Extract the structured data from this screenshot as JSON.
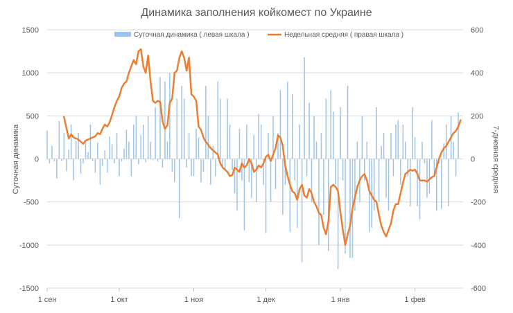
{
  "chart_data": {
    "type": "bar+line",
    "title": "Динамика заполнения койкомест по Украине",
    "ylabel_left": "Суточная динамика",
    "ylabel_right": "7-дневная средняя",
    "ylim_left": [
      -1500,
      1500
    ],
    "ylim_right": [
      -600,
      600
    ],
    "yticks_left": [
      "1500",
      "1000",
      "500",
      "0",
      "-500",
      "-1000",
      "-1500"
    ],
    "yticks_right": [
      "600",
      "400",
      "200",
      "0",
      "-200",
      "-400",
      "-600"
    ],
    "x_start": "2020-09-01",
    "x_end": "2021-02-21",
    "xticks": [
      {
        "label": "1 сен",
        "date": "2020-09-01"
      },
      {
        "label": "1 окт",
        "date": "2020-10-01"
      },
      {
        "label": "1 ноя",
        "date": "2020-11-01"
      },
      {
        "label": "1 дек",
        "date": "2020-12-01"
      },
      {
        "label": "1 янв",
        "date": "2021-01-01"
      },
      {
        "label": "1 фев",
        "date": "2021-02-01"
      }
    ],
    "legend_position": "top",
    "grid": true,
    "series": [
      {
        "name": "Суточная динамика ( левая шкала )",
        "type": "bar",
        "axis": "left",
        "color": "#9dc3e6",
        "values": [
          330,
          -50,
          150,
          -30,
          -230,
          440,
          -20,
          300,
          -140,
          110,
          400,
          -250,
          210,
          300,
          -170,
          -50,
          200,
          80,
          400,
          -20,
          -160,
          190,
          -300,
          -80,
          100,
          -160,
          260,
          170,
          -50,
          300,
          -200,
          -30,
          120,
          340,
          200,
          -200,
          400,
          500,
          -60,
          280,
          400,
          -40,
          500,
          200,
          -10,
          600,
          -30,
          950,
          -100,
          900,
          200,
          1000,
          -150,
          -270,
          700,
          -690,
          850,
          700,
          -100,
          300,
          -200,
          -200,
          350,
          250,
          -270,
          -150,
          850,
          500,
          -300,
          150,
          -200,
          900,
          700,
          -100,
          -120,
          700,
          400,
          -130,
          -400,
          -600,
          350,
          -250,
          -830,
          400,
          -270,
          -450,
          280,
          -500,
          520,
          400,
          -300,
          -860,
          300,
          -500,
          500,
          -350,
          300,
          800,
          -650,
          -300,
          900,
          -850,
          750,
          -250,
          -800,
          400,
          -1200,
          1180,
          -200,
          650,
          -500,
          500,
          200,
          -1000,
          300,
          -650,
          700,
          -1070,
          800,
          550,
          -300,
          -1280,
          600,
          -250,
          -1100,
          850,
          -1150,
          -1150,
          -600,
          200,
          -500,
          500,
          -250,
          200,
          -850,
          -800,
          -600,
          600,
          -500,
          150,
          300,
          -450,
          -600,
          300,
          -200,
          400,
          450,
          -300,
          400,
          200,
          -200,
          -550,
          600,
          250,
          -550,
          -700,
          200,
          -50,
          -450,
          -400,
          450,
          -200,
          -600,
          -50,
          -580,
          180,
          400,
          -550,
          500,
          200,
          -200,
          540
        ]
      },
      {
        "name": "Недельная средняя ( правая шкала )",
        "type": "line",
        "axis": "right",
        "color": "#ed7d31",
        "x_start": "2020-09-08",
        "values": [
          195,
          145,
          95,
          115,
          100,
          95,
          90,
          80,
          70,
          85,
          90,
          95,
          100,
          105,
          120,
          115,
          140,
          160,
          150,
          170,
          205,
          240,
          270,
          290,
          330,
          350,
          360,
          400,
          430,
          460,
          440,
          500,
          510,
          430,
          400,
          480,
          360,
          270,
          260,
          270,
          265,
          175,
          140,
          155,
          260,
          280,
          400,
          410,
          470,
          500,
          470,
          410,
          470,
          300,
          290,
          270,
          150,
          135,
          100,
          80,
          65,
          50,
          40,
          30,
          20,
          -20,
          -40,
          -50,
          -60,
          -80,
          -75,
          -40,
          -50,
          -60,
          -20,
          -40,
          -30,
          0,
          -20,
          -60,
          -50,
          -30,
          -40,
          -20,
          10,
          20,
          -10,
          20,
          50,
          110,
          100,
          60,
          -30,
          -80,
          -120,
          -150,
          -160,
          -190,
          -140,
          -120,
          -170,
          -180,
          -140,
          -160,
          -200,
          -220,
          -250,
          -260,
          -320,
          -350,
          -290,
          -130,
          -120,
          -130,
          -150,
          -250,
          -330,
          -400,
          -350,
          -310,
          -230,
          -180,
          -130,
          -100,
          -80,
          -70,
          -100,
          -150,
          -170,
          -190,
          -200,
          -260,
          -310,
          -340,
          -360,
          -330,
          -300,
          -240,
          -210,
          -210,
          -160,
          -110,
          -70,
          -60,
          -50,
          -55,
          -50,
          -70,
          -100,
          -100,
          -100,
          -105,
          -95,
          -85,
          -80,
          -40,
          0,
          30,
          50,
          60,
          80,
          100,
          120,
          130,
          150,
          180
        ]
      }
    ]
  }
}
